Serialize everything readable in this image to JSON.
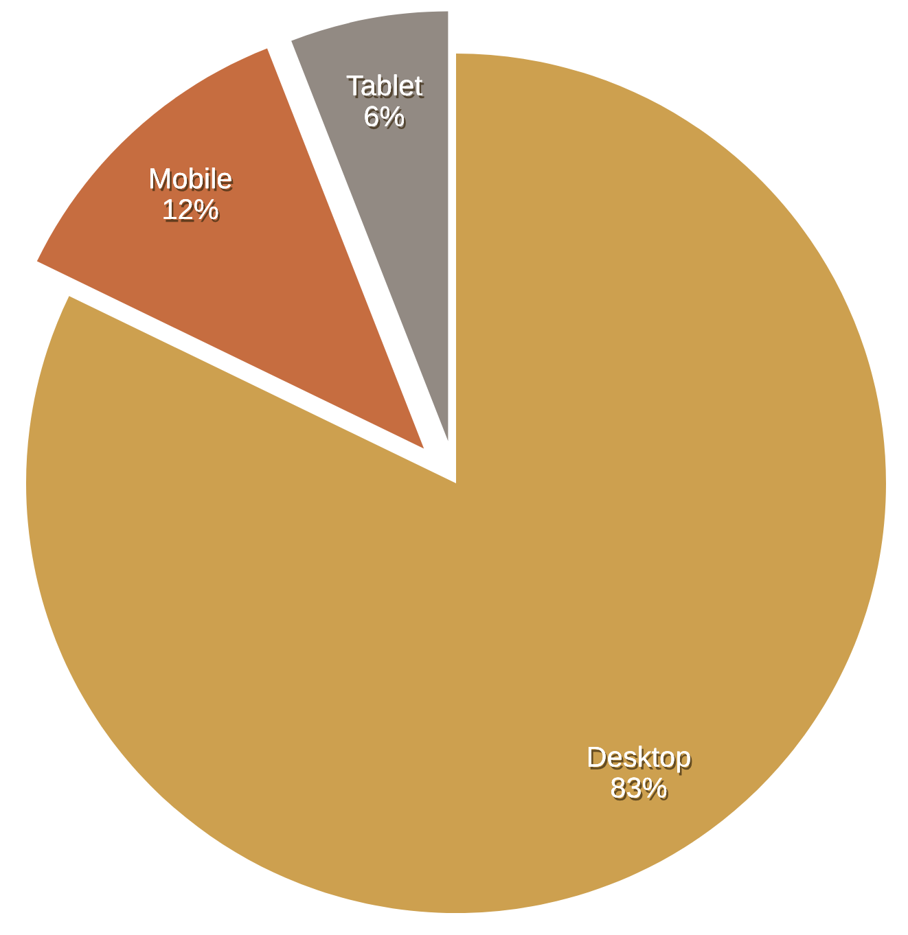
{
  "chart_data": {
    "type": "pie",
    "categories": [
      "Desktop",
      "Mobile",
      "Tablet"
    ],
    "values": [
      83,
      12,
      6
    ],
    "colors": [
      "#cda04f",
      "#c66d40",
      "#928a83"
    ],
    "value_labels": [
      "83%",
      "12%",
      "6%"
    ]
  }
}
